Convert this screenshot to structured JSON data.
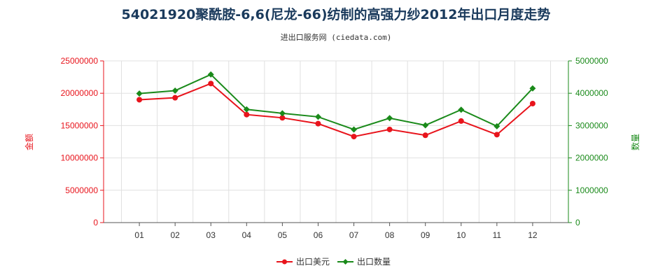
{
  "title": "54021920聚酰胺-6,6(尼龙-66)纺制的高强力纱2012年出口月度走势",
  "subtitle": "进出口服务网 (ciedata.com)",
  "colors": {
    "value": "#e8141c",
    "quantity": "#1a8a1a",
    "left_axis": "#e8141c",
    "right_axis": "#1a8a1a",
    "title": "#1a3a5c"
  },
  "chart_data": {
    "type": "line",
    "categories": [
      "01",
      "02",
      "03",
      "04",
      "05",
      "06",
      "07",
      "08",
      "09",
      "10",
      "11",
      "12"
    ],
    "series": [
      {
        "name": "出口美元",
        "axis": "left",
        "color": "#e8141c",
        "values": [
          19000000,
          19300000,
          21500000,
          16700000,
          16200000,
          15300000,
          13300000,
          14400000,
          13500000,
          15700000,
          13600000,
          18400000
        ]
      },
      {
        "name": "出口数量",
        "axis": "right",
        "color": "#1a8a1a",
        "values": [
          3990000,
          4080000,
          4580000,
          3500000,
          3380000,
          3270000,
          2880000,
          3230000,
          3010000,
          3490000,
          2980000,
          4150000
        ]
      }
    ],
    "y_left": {
      "label": "金额",
      "min": 0,
      "max": 25000000,
      "ticks": [
        "0",
        "5000000",
        "10000000",
        "15000000",
        "20000000",
        "25000000"
      ]
    },
    "y_right": {
      "label": "数量",
      "min": 0,
      "max": 5000000,
      "ticks": [
        "0",
        "1000000",
        "2000000",
        "3000000",
        "4000000",
        "5000000"
      ]
    },
    "grid": true,
    "legend_position": "bottom-center"
  }
}
